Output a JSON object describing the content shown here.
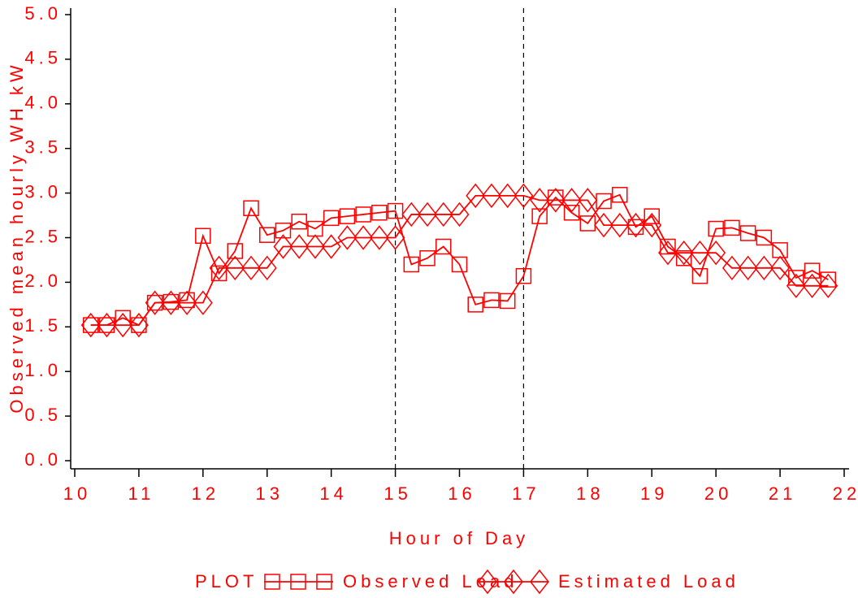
{
  "chart_data": {
    "type": "line",
    "xlabel": "Hour of Day",
    "ylabel": "Observed mean hourly WH  kW",
    "legend_title": "PLOT",
    "x": [
      10.25,
      10.5,
      10.75,
      11,
      11.25,
      11.5,
      11.75,
      12,
      12.25,
      12.5,
      12.75,
      13,
      13.25,
      13.5,
      13.75,
      14,
      14.25,
      14.5,
      14.75,
      15,
      15.25,
      15.5,
      15.75,
      16,
      16.25,
      16.5,
      16.75,
      17,
      17.25,
      17.5,
      17.75,
      18,
      18.25,
      18.5,
      18.75,
      19,
      19.25,
      19.5,
      19.75,
      20,
      20.25,
      20.5,
      20.75,
      21,
      21.25,
      21.5,
      21.75
    ],
    "series": [
      {
        "name": "Observed Load",
        "color": "#ff0000",
        "marker": "square",
        "values": [
          1.52,
          1.52,
          1.6,
          1.52,
          1.77,
          1.78,
          1.8,
          2.52,
          2.1,
          2.35,
          2.83,
          2.53,
          2.58,
          2.68,
          2.6,
          2.72,
          2.74,
          2.76,
          2.78,
          2.8,
          2.2,
          2.27,
          2.4,
          2.2,
          1.75,
          1.8,
          1.79,
          2.07,
          2.74,
          2.95,
          2.78,
          2.66,
          2.91,
          2.98,
          2.62,
          2.74,
          2.4,
          2.27,
          2.07,
          2.6,
          2.61,
          2.55,
          2.5,
          2.36,
          2.05,
          2.13,
          2.03
        ]
      },
      {
        "name": "Estimated Load",
        "color": "#ff0000",
        "marker": "diamond",
        "values": [
          1.52,
          1.52,
          1.52,
          1.52,
          1.77,
          1.77,
          1.77,
          1.77,
          2.16,
          2.16,
          2.16,
          2.16,
          2.4,
          2.4,
          2.4,
          2.4,
          2.5,
          2.5,
          2.5,
          2.5,
          2.76,
          2.76,
          2.76,
          2.76,
          2.97,
          2.97,
          2.97,
          2.97,
          2.92,
          2.92,
          2.92,
          2.92,
          2.64,
          2.64,
          2.64,
          2.64,
          2.33,
          2.33,
          2.33,
          2.33,
          2.16,
          2.16,
          2.16,
          2.16,
          1.96,
          1.96,
          1.96
        ]
      }
    ],
    "xlim": [
      10,
      22
    ],
    "xticks": [
      10,
      11,
      12,
      13,
      14,
      15,
      16,
      17,
      18,
      19,
      20,
      21,
      22
    ],
    "ylim": [
      0,
      5
    ],
    "yticks": [
      {
        "value": 0,
        "label": "0.0"
      },
      0.5,
      {
        "value": 1,
        "label": "1.0"
      },
      1.5,
      {
        "value": 2,
        "label": "2.0"
      },
      2.5,
      {
        "value": 3,
        "label": "3.0"
      },
      3.5,
      {
        "value": 4,
        "label": "4.0"
      },
      4.5,
      {
        "value": 5,
        "label": "5.0"
      }
    ],
    "xrefs": [
      15,
      17
    ],
    "grid": false
  }
}
